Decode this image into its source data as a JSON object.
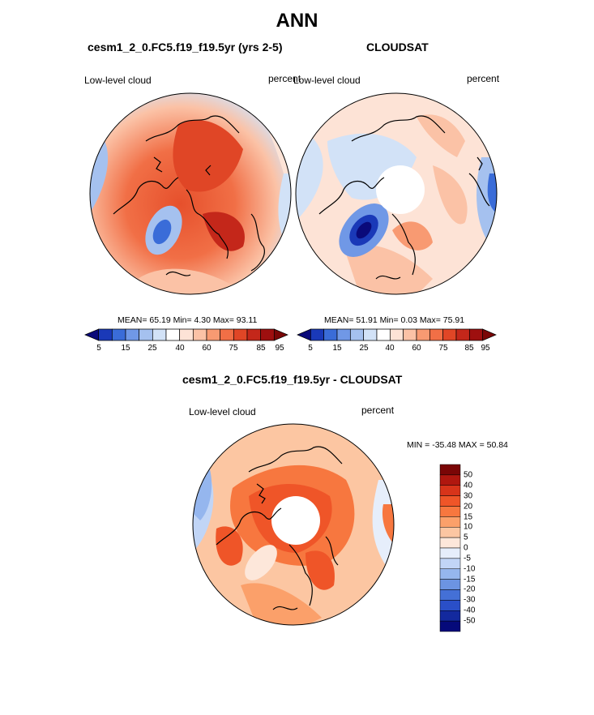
{
  "page": {
    "title": "ANN"
  },
  "panels": [
    {
      "subtitle": "cesm1_2_0.FC5.f19_f19.5yr (yrs 2-5)",
      "field_label": "Low-level cloud",
      "units_label": "percent",
      "stats_text": "MEAN=  65.19  Min=   4.30  Max=  93.11"
    },
    {
      "subtitle": "CLOUDSAT",
      "field_label": "Low-level cloud",
      "units_label": "percent",
      "stats_text": "MEAN=  51.91  Min=   0.03  Max=  75.91"
    },
    {
      "subtitle": "cesm1_2_0.FC5.f19_f19.5yr - CLOUDSAT",
      "field_label": "Low-level cloud",
      "units_label": "percent",
      "stats_text": "MIN = -35.48 MAX =  50.84"
    }
  ],
  "colorbar_abs": {
    "colors": [
      "#0a0a7a",
      "#1a39b8",
      "#3a6cd8",
      "#7098e6",
      "#a5c1ef",
      "#d2e2f7",
      "#ffffff",
      "#fde3d6",
      "#fbc2a6",
      "#f89a72",
      "#f16f46",
      "#e04626",
      "#c4271a",
      "#9e0f0f",
      "#7a0606"
    ],
    "tick_labels": [
      "5",
      "15",
      "25",
      "40",
      "60",
      "75",
      "85",
      "95"
    ]
  },
  "colorbar_diff": {
    "colors": [
      "#7a0606",
      "#b0170f",
      "#d8341a",
      "#ef5528",
      "#f7773f",
      "#fba06a",
      "#fcc6a2",
      "#fde7da",
      "#e6eefb",
      "#c1d5f6",
      "#95b6ee",
      "#6c94e2",
      "#4470d6",
      "#2a4fc8",
      "#13299e",
      "#050a7a"
    ],
    "tick_labels": [
      "50",
      "40",
      "30",
      "20",
      "15",
      "10",
      "5",
      "0",
      "-5",
      "-10",
      "-15",
      "-20",
      "-30",
      "-40",
      "-50"
    ]
  },
  "map_style": {
    "ocean_bg": "#fcd3bd",
    "land_line": "#000000"
  }
}
